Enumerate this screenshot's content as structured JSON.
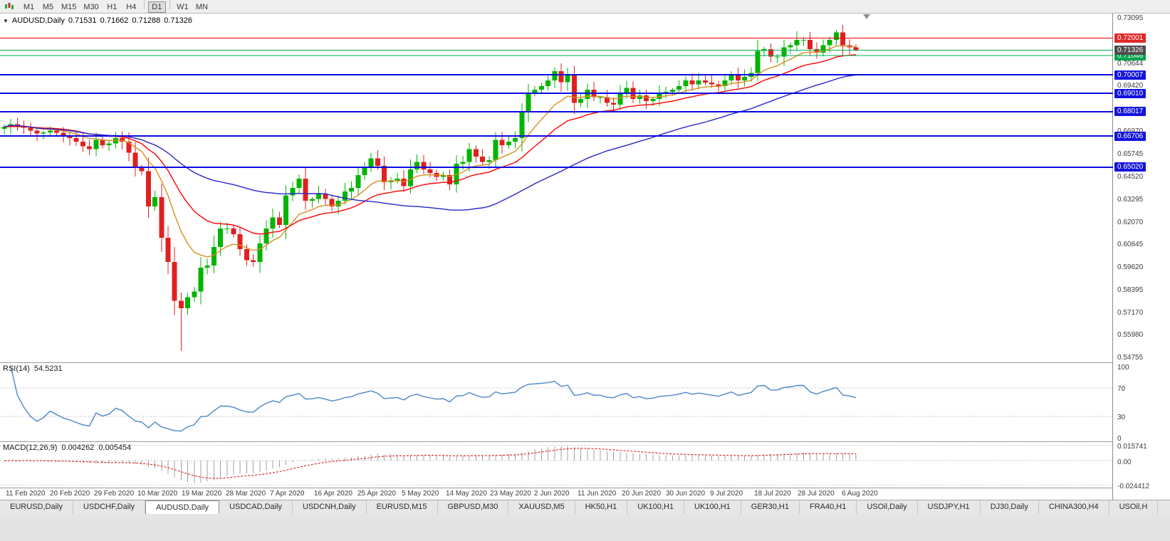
{
  "toolbar": {
    "buttons": [
      "M1",
      "M5",
      "M15",
      "M30",
      "H1",
      "H4",
      "D1",
      "W1",
      "MN"
    ],
    "active": "D1"
  },
  "chart_header": {
    "symbol_period": "AUDUSD,Daily",
    "open": "0.71531",
    "high": "0.71662",
    "low": "0.71288",
    "close": "0.71326"
  },
  "colors": {
    "candle_up": "#00b400",
    "candle_down": "#e02020",
    "ma_fast": "#d98f1f",
    "ma_mid": "#ff0000",
    "ma_slow": "#2626cf",
    "line_red": "#f00000",
    "line_green": "#00b050",
    "line_blue": "#0a0ae0",
    "rsi_line": "#4a86c8",
    "macd_hist": "#a0a0a0",
    "macd_signal": "#e03030",
    "badge_red": "#e02828",
    "badge_green": "#00a34e",
    "badge_blue": "#1414dc",
    "badge_price": "#4d4d4d"
  },
  "chart_data": {
    "type": "candlestick",
    "symbol": "AUDUSD",
    "timeframe": "Daily",
    "price_axis": {
      "min": 0.5448,
      "max": 0.7332,
      "ticks": [
        "0.73095",
        "0.71870",
        "0.70644",
        "0.69420",
        "0.68195",
        "0.66970",
        "0.65745",
        "0.64520",
        "0.63295",
        "0.62070",
        "0.60845",
        "0.59620",
        "0.58395",
        "0.57170",
        "0.55980",
        "0.54755"
      ]
    },
    "date_labels": [
      "11 Feb 2020",
      "20 Feb 2020",
      "29 Feb 2020",
      "10 Mar 2020",
      "19 Mar 2020",
      "28 Mar 2020",
      "7 Apr 2020",
      "16 Apr 2020",
      "25 Apr 2020",
      "5 May 2020",
      "14 May 2020",
      "23 May 2020",
      "2 Jun 2020",
      "11 Jun 2020",
      "20 Jun 2020",
      "30 Jun 2020",
      "9 Jul 2020",
      "18 Jul 2020",
      "28 Jul 2020",
      "6 Aug 2020"
    ],
    "first_open": 0.671,
    "closes": [
      0.672,
      0.6735,
      0.6725,
      0.6715,
      0.67,
      0.6685,
      0.669,
      0.67,
      0.6688,
      0.6672,
      0.666,
      0.664,
      0.6615,
      0.66,
      0.665,
      0.662,
      0.663,
      0.666,
      0.664,
      0.658,
      0.65,
      0.648,
      0.629,
      0.634,
      0.612,
      0.599,
      0.578,
      0.574,
      0.58,
      0.583,
      0.596,
      0.597,
      0.607,
      0.617,
      0.617,
      0.614,
      0.606,
      0.6,
      0.599,
      0.609,
      0.617,
      0.623,
      0.619,
      0.635,
      0.639,
      0.644,
      0.632,
      0.633,
      0.636,
      0.633,
      0.629,
      0.632,
      0.637,
      0.639,
      0.646,
      0.65,
      0.655,
      0.651,
      0.642,
      0.643,
      0.644,
      0.64,
      0.649,
      0.653,
      0.649,
      0.647,
      0.645,
      0.646,
      0.641,
      0.652,
      0.653,
      0.66,
      0.656,
      0.653,
      0.654,
      0.665,
      0.662,
      0.664,
      0.666,
      0.68,
      0.69,
      0.692,
      0.694,
      0.697,
      0.702,
      0.696,
      0.7,
      0.685,
      0.687,
      0.692,
      0.688,
      0.688,
      0.685,
      0.684,
      0.69,
      0.693,
      0.687,
      0.689,
      0.686,
      0.687,
      0.69,
      0.691,
      0.692,
      0.694,
      0.697,
      0.695,
      0.697,
      0.696,
      0.695,
      0.694,
      0.697,
      0.7,
      0.697,
      0.699,
      0.701,
      0.713,
      0.714,
      0.71,
      0.71,
      0.715,
      0.716,
      0.719,
      0.719,
      0.714,
      0.712,
      0.716,
      0.719,
      0.723,
      0.716,
      0.715,
      0.71326
    ],
    "overrides": {
      "27": {
        "l": 0.551
      },
      "127": {
        "h": 0.7243
      },
      "130": {
        "h": 0.71662,
        "l": 0.71288
      }
    },
    "moving_averages": [
      {
        "name": "MA fast",
        "type": "ema",
        "period": 10,
        "color": "#d98f1f"
      },
      {
        "name": "MA mid",
        "type": "ema",
        "period": 21,
        "color": "#ff0000"
      },
      {
        "name": "MA slow",
        "type": "sma",
        "period": 50,
        "color": "#2626cf"
      }
    ],
    "hlines": [
      {
        "price": 0.72001,
        "label": "0.72001",
        "color": "#f00000",
        "width": 1,
        "badge": "#e02828"
      },
      {
        "price": 0.71335,
        "label": "0.71335",
        "color": "#00b050",
        "width": 1,
        "badge": null
      },
      {
        "price": 0.71046,
        "label": "0.71046",
        "color": "#00b050",
        "width": 1,
        "badge": "#00a34e"
      },
      {
        "price": 0.70007,
        "label": "0.70007",
        "color": "#0a0ae0",
        "width": 2,
        "badge": "#1414dc"
      },
      {
        "price": 0.6901,
        "label": "0.69010",
        "color": "#0a0ae0",
        "width": 2,
        "badge": "#1414dc"
      },
      {
        "price": 0.68017,
        "label": "0.68017",
        "color": "#0a0ae0",
        "width": 2,
        "badge": "#1414dc"
      },
      {
        "price": 0.66706,
        "label": "0.66706",
        "color": "#0a0ae0",
        "width": 2,
        "badge": "#1414dc"
      },
      {
        "price": 0.6502,
        "label": "0.65020",
        "color": "#0a0ae0",
        "width": 2,
        "badge": "#1414dc"
      }
    ],
    "current_price": {
      "value": 0.71326,
      "label": "0.71326",
      "badge": "#4d4d4d"
    },
    "rsi": {
      "label": "RSI(14)",
      "value_label": "54.5231",
      "period": 14,
      "range": [
        0,
        100
      ],
      "levels": [
        70,
        30
      ],
      "axis_labels": [
        {
          "text": "100",
          "value": 100
        },
        {
          "text": "70",
          "value": 70
        },
        {
          "text": "30",
          "value": 30
        },
        {
          "text": "0",
          "value": 0
        }
      ],
      "color": "#4a86c8"
    },
    "macd": {
      "label": "MACD(12,26,9)",
      "main_value_label": "0.004262",
      "signal_value_label": "0.005454",
      "fast": 12,
      "slow": 26,
      "signal": 9,
      "range": [
        -0.0245,
        0.016
      ],
      "axis_labels": [
        {
          "text": "0.015741",
          "value": 0.015741
        },
        {
          "text": "0.00",
          "value": 0
        },
        {
          "text": "-0.024412",
          "value": -0.024412
        }
      ],
      "hist_color": "#a0a0a0",
      "signal_color": "#e03030"
    }
  },
  "tabs": [
    {
      "label": "EURUSD,Daily",
      "active": false
    },
    {
      "label": "USDCHF,Daily",
      "active": false
    },
    {
      "label": "AUDUSD,Daily",
      "active": true
    },
    {
      "label": "USDCAD,Daily",
      "active": false
    },
    {
      "label": "USDCNH,Daily",
      "active": false
    },
    {
      "label": "EURUSD,M15",
      "active": false
    },
    {
      "label": "GBPUSD,M30",
      "active": false
    },
    {
      "label": "XAUUSD,M5",
      "active": false
    },
    {
      "label": "HK50,H1",
      "active": false
    },
    {
      "label": "UK100,H1",
      "active": false
    },
    {
      "label": "UK100,H1",
      "active": false
    },
    {
      "label": "GER30,H1",
      "active": false
    },
    {
      "label": "FRA40,H1",
      "active": false
    },
    {
      "label": "USOil,Daily",
      "active": false
    },
    {
      "label": "USDJPY,H1",
      "active": false
    },
    {
      "label": "DJ30,Daily",
      "active": false
    },
    {
      "label": "CHINA300,H4",
      "active": false
    },
    {
      "label": "USOil,H",
      "active": false
    }
  ]
}
